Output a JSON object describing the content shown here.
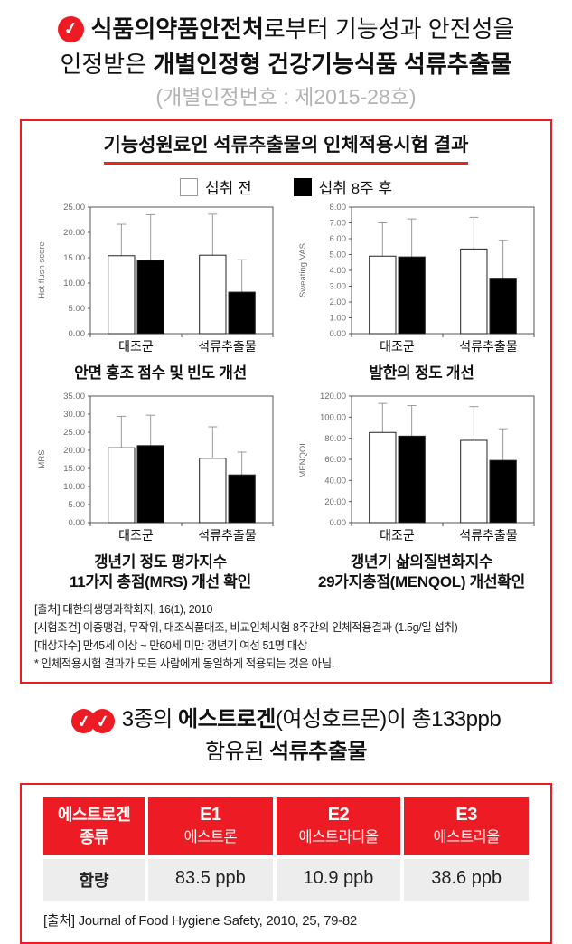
{
  "colors": {
    "accent_red": "#ed1c24",
    "subtitle_gray": "#b3b3b3",
    "table_row_gray": "#ededed",
    "bar_before_fill": "#ffffff",
    "bar_after_fill": "#000000"
  },
  "icons": {
    "check": "✓"
  },
  "header": {
    "line1_bold": "식품의약품안전처",
    "line1_rest": "로부터 기능성과 안전성을",
    "line2_pre": "인정받은 ",
    "line2_bold": "개별인정형 건강기능식품 석류추출물",
    "line3": "(개별인정번호 : 제2015-28호)"
  },
  "trial_box": {
    "title": "기능성원료인 석류추출물의 인체적용시험 결과",
    "legend": [
      {
        "label": "섭취 전",
        "fill": "#ffffff"
      },
      {
        "label": "섭취 8주 후",
        "fill": "#000000"
      }
    ],
    "footnotes": [
      "[출처] 대한의생명과학회지, 16(1), 2010",
      "[시험조건] 이중맹검, 무작위, 대조식품대조, 비교인체시험 8주간의 인체적용결과 (1.5g/일 섭취)",
      "[대상자수] 만45세 이상 ~ 만60세 미만 갱년기 여성 51명 대상",
      "* 인체적용시험 결과가 모든 사람에게 동일하게 적용되는 것은 아님."
    ]
  },
  "chart_data": [
    {
      "type": "bar",
      "caption": "안면 홍조 점수 및 빈도 개선",
      "ylabel": "Hot flush score",
      "ylim": [
        0,
        25
      ],
      "ytick_step": 5,
      "grid": false,
      "categories": [
        "대조군",
        "석류추출물"
      ],
      "series": [
        {
          "name": "섭취 전",
          "fill": "#ffffff",
          "values": [
            15.4,
            15.5
          ],
          "upper_errors": [
            21.6,
            23.6
          ]
        },
        {
          "name": "섭취 8주 후",
          "fill": "#000000",
          "values": [
            14.5,
            8.2
          ],
          "upper_errors": [
            23.5,
            14.6
          ]
        }
      ]
    },
    {
      "type": "bar",
      "caption": "발한의 정도 개선",
      "ylabel": "Sweating VAS",
      "ylim": [
        0,
        8
      ],
      "ytick_step": 1,
      "grid": false,
      "categories": [
        "대조군",
        "석류추출물"
      ],
      "series": [
        {
          "name": "섭취 전",
          "fill": "#ffffff",
          "values": [
            4.9,
            5.35
          ],
          "upper_errors": [
            7.0,
            7.35
          ]
        },
        {
          "name": "섭취 8주 후",
          "fill": "#000000",
          "values": [
            4.85,
            3.45
          ],
          "upper_errors": [
            7.25,
            5.9
          ]
        }
      ]
    },
    {
      "type": "bar",
      "caption": "갱년기 정도 평가지수\n11가지 총점(MRS) 개선 확인",
      "ylabel": "MRS",
      "ylim": [
        0,
        35
      ],
      "ytick_step": 5,
      "grid": false,
      "categories": [
        "대조군",
        "석류추출물"
      ],
      "series": [
        {
          "name": "섭취 전",
          "fill": "#ffffff",
          "values": [
            20.7,
            17.8
          ],
          "upper_errors": [
            29.4,
            26.5
          ]
        },
        {
          "name": "섭취 8주 후",
          "fill": "#000000",
          "values": [
            21.3,
            13.2
          ],
          "upper_errors": [
            29.7,
            19.5
          ]
        }
      ]
    },
    {
      "type": "bar",
      "caption": "갱년기 삶의질변화지수\n29가지총점(MENQOL) 개선확인",
      "ylabel": "MENQOL",
      "ylim": [
        0,
        120
      ],
      "ytick_step": 20,
      "grid": false,
      "categories": [
        "대조군",
        "석류추출물"
      ],
      "series": [
        {
          "name": "섭취 전",
          "fill": "#ffffff",
          "values": [
            85.5,
            78.0
          ],
          "upper_errors": [
            113.0,
            110.0
          ]
        },
        {
          "name": "섭취 8주 후",
          "fill": "#000000",
          "values": [
            82.0,
            59.0
          ],
          "upper_errors": [
            111.0,
            89.0
          ]
        }
      ]
    }
  ],
  "estrogen_heading": {
    "seg1": "3종의 ",
    "seg2": "에스트로겐",
    "seg3": "(여성호르몬)이 총133ppb",
    "line2_pre": "함유된 ",
    "line2_bold": "석류추출물"
  },
  "estrogen_table": {
    "header": [
      {
        "line1": "에스트로겐",
        "line2": "종류"
      },
      {
        "line1": "E1",
        "line2": "에스트론"
      },
      {
        "line1": "E2",
        "line2": "에스트라디올"
      },
      {
        "line1": "E3",
        "line2": "에스트리올"
      }
    ],
    "row_label": "함량",
    "values": [
      "83.5 ppb",
      "10.9 ppb",
      "38.6 ppb"
    ],
    "source": "[출처] Journal of Food Hygiene Safety, 2010, 25, 79-82"
  }
}
